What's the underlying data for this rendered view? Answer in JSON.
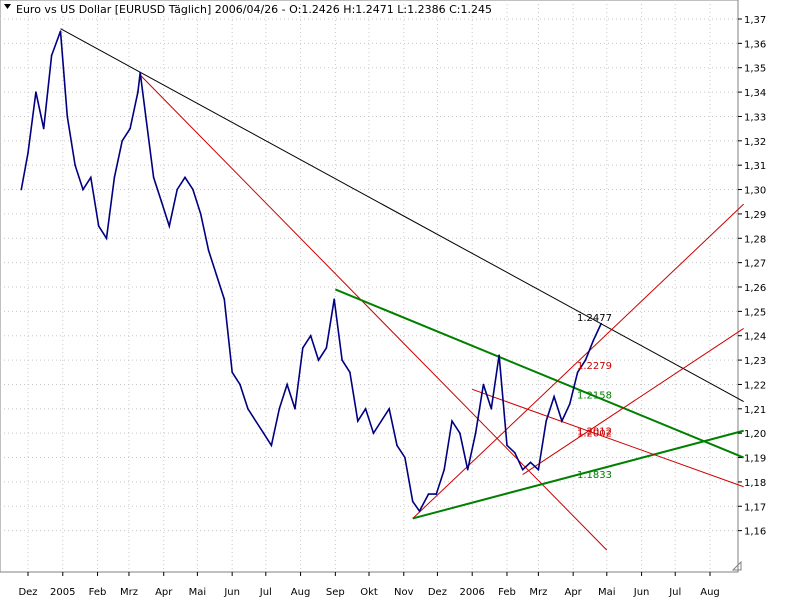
{
  "chart_data": {
    "type": "line",
    "title": "Euro vs US Dollar [EURUSD  Täglich] 2006/04/26 - O:1.2426 H:1.2471 L:1.2386 C:1.245",
    "xlabel": "",
    "ylabel": "",
    "ylim": [
      1.15,
      1.37
    ],
    "y_ticks": [
      "1,37",
      "1,36",
      "1,35",
      "1,34",
      "1,33",
      "1,32",
      "1,31",
      "1,30",
      "1,29",
      "1,28",
      "1,27",
      "1,26",
      "1,25",
      "1,24",
      "1,23",
      "1,22",
      "1,21",
      "1,20",
      "1,19",
      "1,18",
      "1,17",
      "1,16"
    ],
    "x_ticks": [
      "Dez",
      "2005",
      "Feb",
      "Mrz",
      "Apr",
      "Mai",
      "Jun",
      "Jul",
      "Aug",
      "Sep",
      "Okt",
      "Nov",
      "Dez",
      "2006",
      "Feb",
      "Mrz",
      "Apr",
      "Mai",
      "Jun",
      "Jul",
      "Aug"
    ],
    "grid": true,
    "series": [
      {
        "color": "#000080",
        "x": [
          "2004-11-25",
          "2004-12-01",
          "2004-12-08",
          "2004-12-15",
          "2004-12-22",
          "2004-12-30",
          "2005-01-05",
          "2005-01-12",
          "2005-01-19",
          "2005-01-26",
          "2005-02-02",
          "2005-02-09",
          "2005-02-16",
          "2005-02-23",
          "2005-03-02",
          "2005-03-09",
          "2005-03-11",
          "2005-03-16",
          "2005-03-23",
          "2005-03-30",
          "2005-04-06",
          "2005-04-13",
          "2005-04-20",
          "2005-04-27",
          "2005-05-04",
          "2005-05-11",
          "2005-05-18",
          "2005-05-25",
          "2005-06-01",
          "2005-06-08",
          "2005-06-15",
          "2005-06-22",
          "2005-06-29",
          "2005-07-06",
          "2005-07-13",
          "2005-07-20",
          "2005-07-27",
          "2005-08-03",
          "2005-08-10",
          "2005-08-17",
          "2005-08-24",
          "2005-08-31",
          "2005-09-07",
          "2005-09-14",
          "2005-09-21",
          "2005-09-28",
          "2005-10-05",
          "2005-10-12",
          "2005-10-19",
          "2005-10-26",
          "2005-11-02",
          "2005-11-09",
          "2005-11-15",
          "2005-11-23",
          "2005-11-30",
          "2005-12-07",
          "2005-12-14",
          "2005-12-21",
          "2005-12-28",
          "2006-01-04",
          "2006-01-11",
          "2006-01-18",
          "2006-01-25",
          "2006-02-01",
          "2006-02-08",
          "2006-02-15",
          "2006-02-22",
          "2006-03-01",
          "2006-03-08",
          "2006-03-15",
          "2006-03-22",
          "2006-03-29",
          "2006-04-05",
          "2006-04-12",
          "2006-04-19",
          "2006-04-26"
        ],
        "values": [
          1.3,
          1.315,
          1.34,
          1.325,
          1.355,
          1.365,
          1.33,
          1.31,
          1.3,
          1.305,
          1.285,
          1.28,
          1.305,
          1.32,
          1.325,
          1.34,
          1.348,
          1.33,
          1.305,
          1.295,
          1.285,
          1.3,
          1.305,
          1.3,
          1.29,
          1.275,
          1.265,
          1.255,
          1.225,
          1.22,
          1.21,
          1.205,
          1.2,
          1.195,
          1.21,
          1.22,
          1.21,
          1.235,
          1.24,
          1.23,
          1.235,
          1.255,
          1.23,
          1.225,
          1.205,
          1.21,
          1.2,
          1.205,
          1.21,
          1.195,
          1.19,
          1.172,
          1.168,
          1.175,
          1.175,
          1.185,
          1.205,
          1.2,
          1.185,
          1.2,
          1.22,
          1.21,
          1.232,
          1.195,
          1.192,
          1.185,
          1.188,
          1.185,
          1.205,
          1.215,
          1.205,
          1.212,
          1.225,
          1.23,
          1.238,
          1.245
        ]
      }
    ],
    "annotations": [
      {
        "text": "1.2477",
        "value": 1.2477,
        "color": "#000000"
      },
      {
        "text": "1.2279",
        "value": 1.2279,
        "color": "#cc0000"
      },
      {
        "text": "1.2158",
        "value": 1.2158,
        "color": "#008000"
      },
      {
        "text": "1.2012",
        "value": 1.2012,
        "color": "#cc0000"
      },
      {
        "text": "1.2002",
        "value": 1.2002,
        "color": "#cc0000"
      },
      {
        "text": "1.1833",
        "value": 1.1833,
        "color": "#008000"
      }
    ],
    "trendlines": [
      {
        "color": "#000000",
        "from": [
          "2004-12-30",
          1.366
        ],
        "to": [
          "2006-08-31",
          1.213
        ]
      },
      {
        "color": "#cc0000",
        "from": [
          "2005-03-11",
          1.347
        ],
        "to": [
          "2006-05-01",
          1.152
        ]
      },
      {
        "color": "#008000",
        "from": [
          "2005-09-01",
          1.259
        ],
        "to": [
          "2006-08-31",
          1.19
        ]
      },
      {
        "color": "#008000",
        "from": [
          "2005-11-09",
          1.165
        ],
        "to": [
          "2006-08-31",
          1.201
        ]
      },
      {
        "color": "#cc0000",
        "from": [
          "2005-11-09",
          1.165
        ],
        "to": [
          "2006-08-31",
          1.294
        ]
      },
      {
        "color": "#cc0000",
        "from": [
          "2006-01-01",
          1.218
        ],
        "to": [
          "2006-08-31",
          1.178
        ]
      },
      {
        "color": "#cc0000",
        "from": [
          "2006-02-15",
          1.183
        ],
        "to": [
          "2006-08-31",
          1.243
        ]
      }
    ],
    "colors": {
      "price": "#000080",
      "grid": "#c8c8c8"
    }
  }
}
